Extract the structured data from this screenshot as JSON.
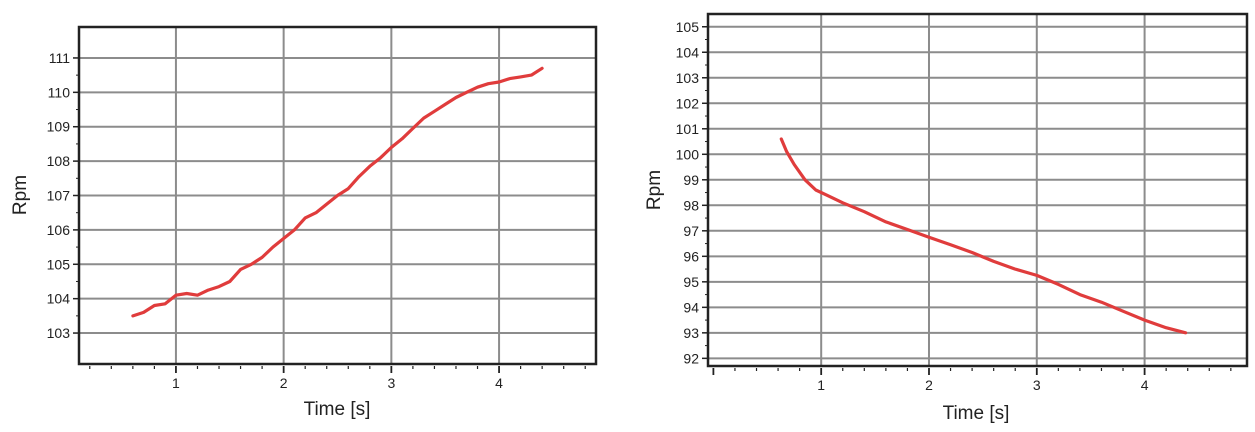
{
  "colors": {
    "line": "#e03c3c",
    "grid": "#8c8c8c",
    "frame": "#222222"
  },
  "chart_data": [
    {
      "type": "line",
      "title": "",
      "xlabel": "Time [s]",
      "ylabel": "Rpm",
      "xlim": [
        0.1,
        4.9
      ],
      "ylim": [
        102.1,
        111.9
      ],
      "xticks": [
        1,
        2,
        3,
        4
      ],
      "yticks": [
        103,
        104,
        105,
        106,
        107,
        108,
        109,
        110,
        111
      ],
      "grid": true,
      "series": [
        {
          "x": [
            0.6,
            0.7,
            0.8,
            0.9,
            1.0,
            1.1,
            1.2,
            1.3,
            1.4,
            1.5,
            1.6,
            1.7,
            1.8,
            1.9,
            2.0,
            2.1,
            2.2,
            2.3,
            2.4,
            2.5,
            2.6,
            2.7,
            2.8,
            2.9,
            3.0,
            3.1,
            3.2,
            3.3,
            3.4,
            3.5,
            3.6,
            3.7,
            3.8,
            3.9,
            4.0,
            4.1,
            4.2,
            4.3,
            4.4
          ],
          "y": [
            103.5,
            103.6,
            103.8,
            103.85,
            104.1,
            104.15,
            104.1,
            104.25,
            104.35,
            104.5,
            104.85,
            105.0,
            105.2,
            105.5,
            105.75,
            106.0,
            106.35,
            106.5,
            106.75,
            107.0,
            107.2,
            107.55,
            107.85,
            108.1,
            108.4,
            108.65,
            108.95,
            109.25,
            109.45,
            109.65,
            109.85,
            110.0,
            110.15,
            110.25,
            110.3,
            110.4,
            110.45,
            110.5,
            110.7
          ]
        }
      ]
    },
    {
      "type": "line",
      "title": "",
      "xlabel": "Time [s]",
      "ylabel": "Rpm",
      "xlim": [
        -0.05,
        4.95
      ],
      "ylim": [
        91.7,
        105.5
      ],
      "xticks": [
        1,
        2,
        3,
        4
      ],
      "yticks": [
        92,
        93,
        94,
        95,
        96,
        97,
        98,
        99,
        100,
        101,
        102,
        103,
        104,
        105
      ],
      "grid": true,
      "series": [
        {
          "x": [
            0.63,
            0.68,
            0.75,
            0.85,
            0.95,
            1.05,
            1.2,
            1.4,
            1.6,
            1.8,
            2.0,
            2.2,
            2.4,
            2.6,
            2.8,
            3.0,
            3.2,
            3.4,
            3.6,
            3.8,
            4.0,
            4.2,
            4.38
          ],
          "y": [
            100.6,
            100.1,
            99.6,
            99.0,
            98.6,
            98.4,
            98.1,
            97.75,
            97.35,
            97.05,
            96.75,
            96.45,
            96.15,
            95.8,
            95.5,
            95.25,
            94.9,
            94.5,
            94.2,
            93.85,
            93.5,
            93.2,
            93.0
          ]
        }
      ]
    }
  ]
}
